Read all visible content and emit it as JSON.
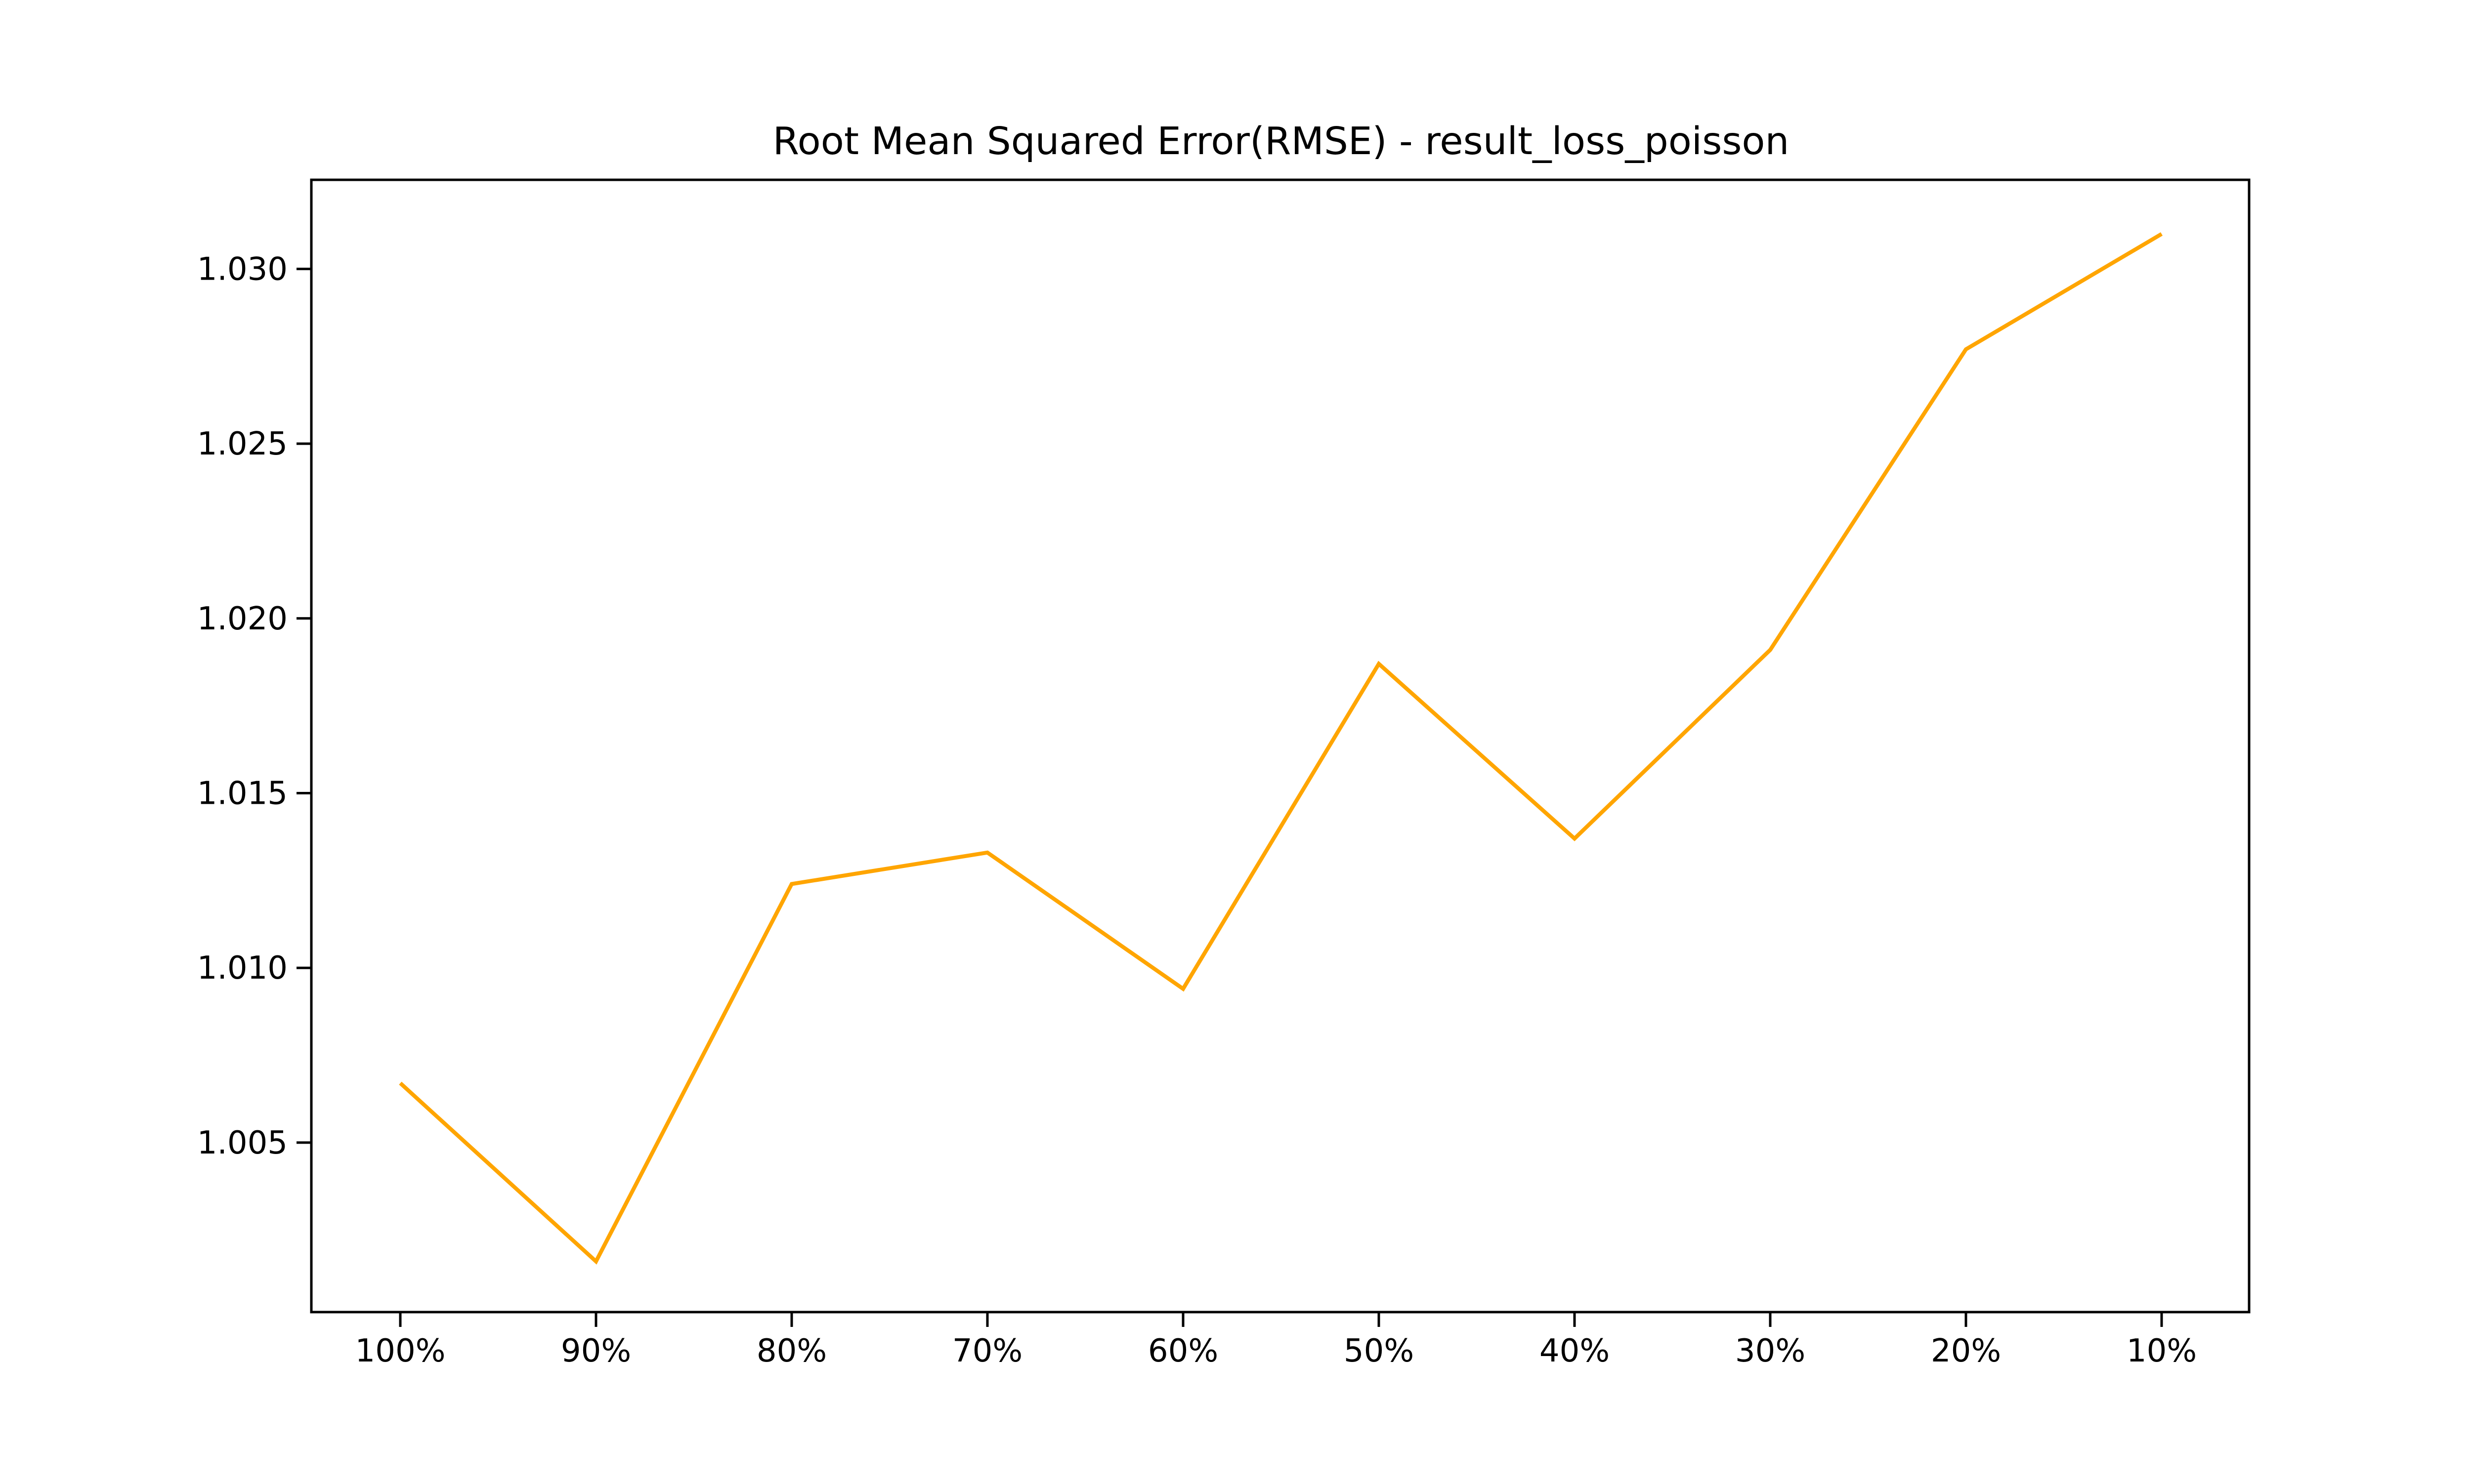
{
  "chart_data": {
    "type": "line",
    "title": "Root Mean Squared Error(RMSE) - result_loss_poisson",
    "xlabel": "",
    "ylabel": "",
    "categories": [
      "100%",
      "90%",
      "80%",
      "70%",
      "60%",
      "50%",
      "40%",
      "30%",
      "20%",
      "10%"
    ],
    "series": [
      {
        "values": [
          1.0067,
          1.0016,
          1.0124,
          1.0133,
          1.0094,
          1.0187,
          1.0137,
          1.0191,
          1.0277,
          1.031
        ],
        "color": "#FFA500"
      }
    ],
    "yticks": [
      1.005,
      1.01,
      1.015,
      1.02,
      1.025,
      1.03
    ],
    "ytick_labels": [
      "1.005",
      "1.010",
      "1.015",
      "1.020",
      "1.025",
      "1.030"
    ],
    "ylim": [
      1.00015,
      1.03255
    ],
    "grid": false,
    "legend": "none"
  }
}
